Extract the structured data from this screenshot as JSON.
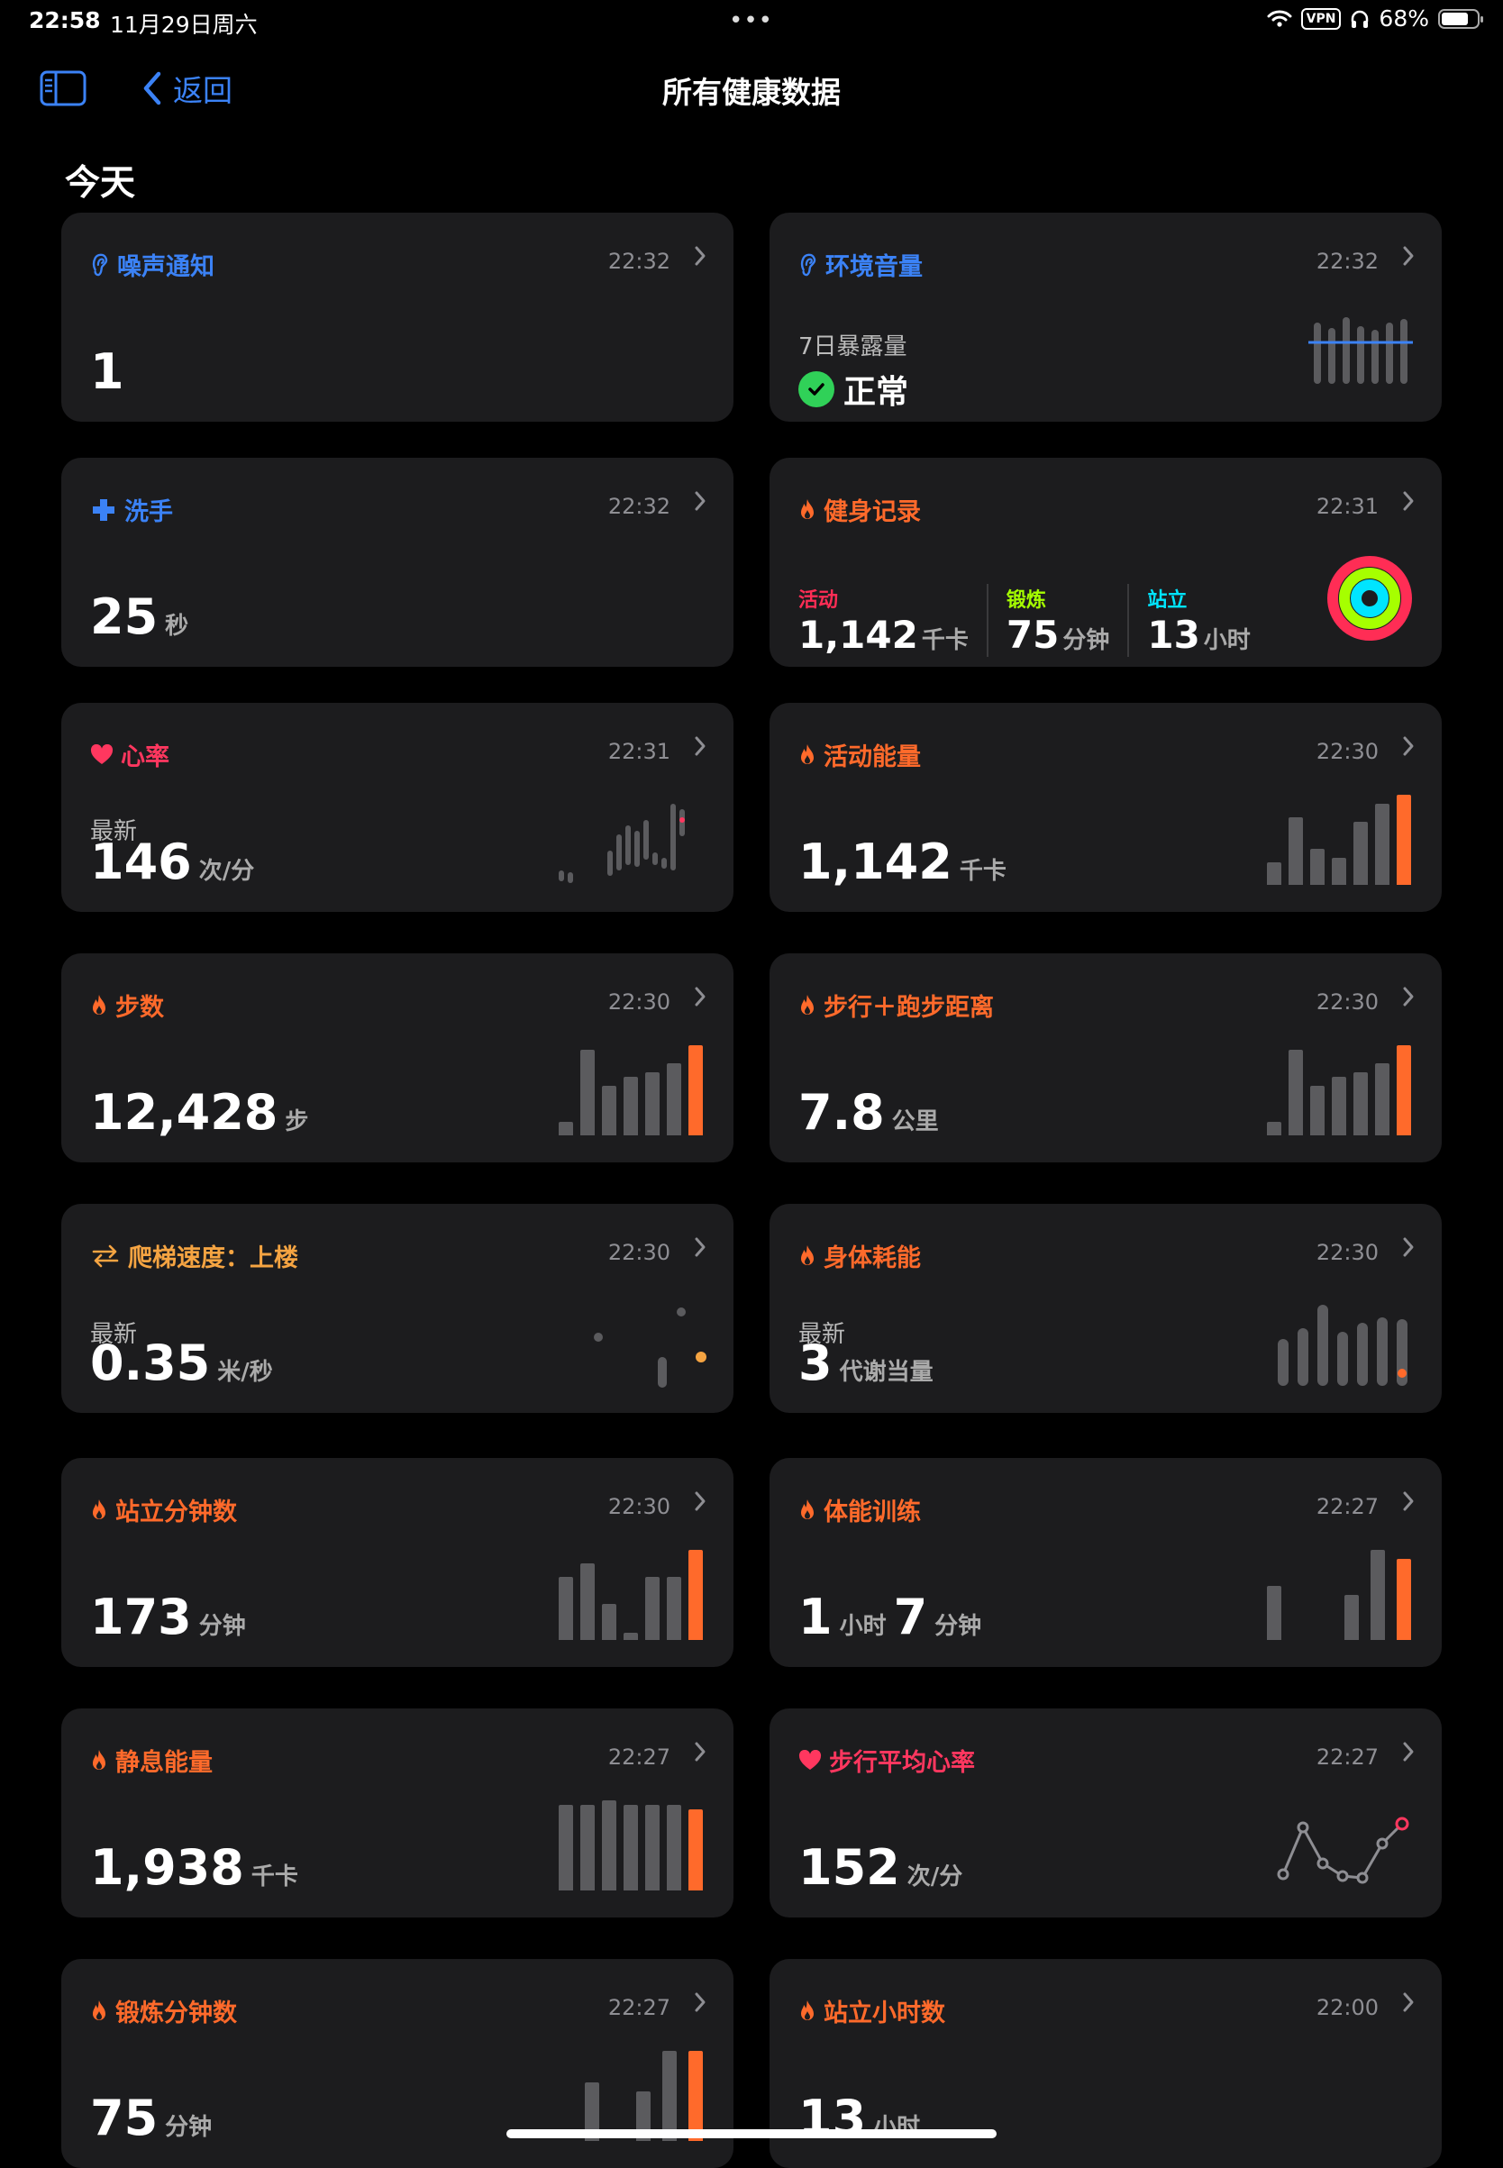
{
  "status_bar": {
    "time": "22:58",
    "date": "11月29日周六",
    "vpn": "VPN",
    "battery": "68%",
    "battery_fraction": 0.68
  },
  "nav": {
    "back_label": "返回",
    "title": "所有健康数据"
  },
  "section_title": "今天",
  "colors": {
    "orange": "#ff6a2b",
    "blue": "#3b82f6",
    "red": "#ff375f",
    "amber": "#f5a442",
    "bar_gray": "#5b5b5e",
    "ring_move": "#ff2d55",
    "ring_exercise": "#a6ff00",
    "ring_stand": "#00e5ff"
  },
  "cards": {
    "noise": {
      "title": "噪声通知",
      "time": "22:32",
      "value": "1",
      "icon": "ear-icon"
    },
    "env": {
      "title": "环境音量",
      "time": "22:32",
      "sub": "7日暴露量",
      "status": "正常",
      "icon": "ear-icon"
    },
    "hand": {
      "title": "洗手",
      "time": "22:32",
      "value": "25",
      "unit": "秒",
      "icon": "plus-icon"
    },
    "fitness": {
      "title": "健身记录",
      "time": "22:31",
      "icon": "flame-icon",
      "move": {
        "label": "活动",
        "value": "1,142",
        "unit": "千卡"
      },
      "exercise": {
        "label": "锻炼",
        "value": "75",
        "unit": "分钟"
      },
      "stand": {
        "label": "站立",
        "value": "13",
        "unit": "小时"
      }
    },
    "heart": {
      "title": "心率",
      "time": "22:31",
      "sub": "最新",
      "value": "146",
      "unit": "次/分",
      "icon": "heart-icon"
    },
    "active": {
      "title": "活动能量",
      "time": "22:30",
      "value": "1,142",
      "unit": "千卡",
      "icon": "flame-icon",
      "bars": [
        0.25,
        0.75,
        0.4,
        0.3,
        0.7,
        0.9,
        1.0
      ]
    },
    "steps": {
      "title": "步数",
      "time": "22:30",
      "value": "12,428",
      "unit": "步",
      "icon": "flame-icon",
      "bars": [
        0.15,
        0.95,
        0.55,
        0.65,
        0.7,
        0.8,
        1.0
      ]
    },
    "distance": {
      "title": "步行＋跑步距离",
      "time": "22:30",
      "value": "7.8",
      "unit": "公里",
      "icon": "flame-icon",
      "bars": [
        0.15,
        0.95,
        0.55,
        0.65,
        0.7,
        0.8,
        1.0
      ]
    },
    "stairs": {
      "title": "爬梯速度：上楼",
      "time": "22:30",
      "sub": "最新",
      "value": "0.35",
      "unit": "米/秒",
      "icon": "arrows-icon"
    },
    "metabolic": {
      "title": "身体耗能",
      "time": "22:30",
      "sub": "最新",
      "value": "3",
      "unit": "代谢当量",
      "icon": "flame-icon"
    },
    "stand_min": {
      "title": "站立分钟数",
      "time": "22:30",
      "value": "173",
      "unit": "分钟",
      "icon": "flame-icon",
      "bars": [
        0.7,
        0.85,
        0.4,
        0.08,
        0.7,
        0.7,
        1.0
      ]
    },
    "training": {
      "title": "体能训练",
      "time": "22:27",
      "value1": "1",
      "unit1": "小时",
      "value2": "7",
      "unit2": "分钟",
      "icon": "flame-icon",
      "bars": [
        0.6,
        0,
        0,
        0.5,
        1.0,
        0.9
      ]
    },
    "resting": {
      "title": "静息能量",
      "time": "22:27",
      "value": "1,938",
      "unit": "千卡",
      "icon": "flame-icon",
      "bars": [
        0.95,
        0.95,
        1.0,
        0.95,
        0.95,
        0.95,
        0.9
      ]
    },
    "walk_hr": {
      "title": "步行平均心率",
      "time": "22:27",
      "value": "152",
      "unit": "次/分",
      "icon": "heart-icon"
    },
    "exercise_min": {
      "title": "锻炼分钟数",
      "time": "22:27",
      "value": "75",
      "unit": "分钟",
      "icon": "flame-icon",
      "bars": [
        0,
        0.65,
        0,
        0.55,
        1.0,
        1.0
      ]
    },
    "stand_hours": {
      "title": "站立小时数",
      "time": "22:00",
      "value": "13",
      "unit": "小时",
      "icon": "flame-icon"
    }
  }
}
